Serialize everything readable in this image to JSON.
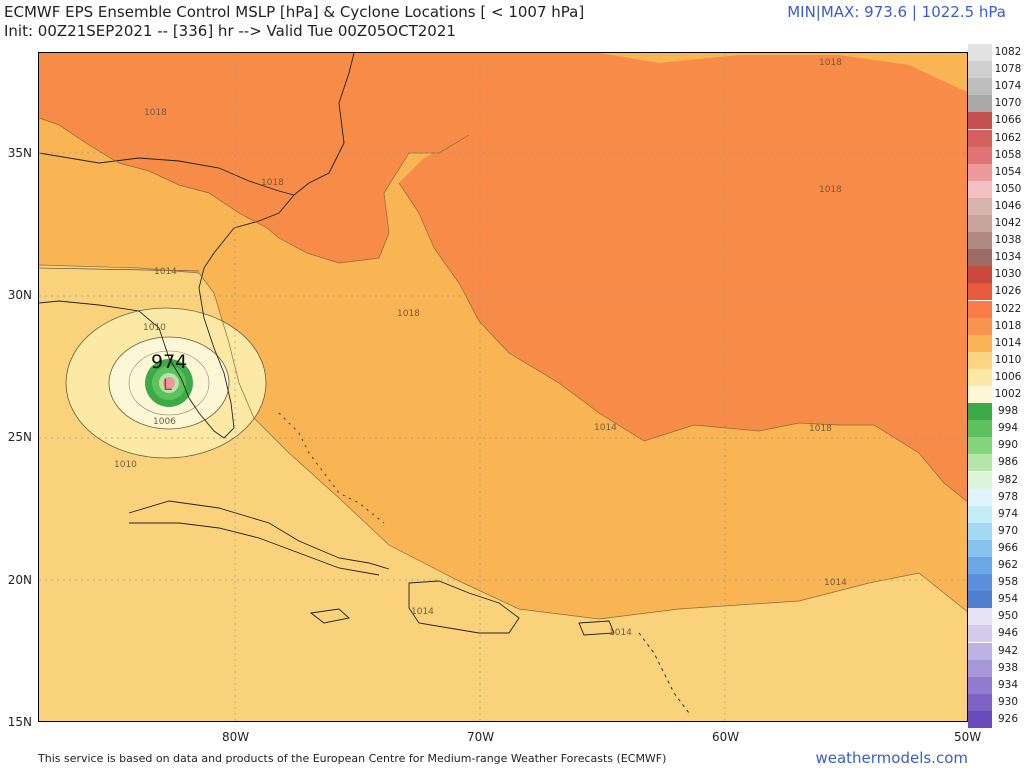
{
  "header": {
    "title_line1": "ECMWF EPS Ensemble Control MSLP [hPa] & Cyclone Locations [ < 1007 hPa]",
    "title_line2": "Init: 00Z21SEP2021 -- [336] hr --> Valid Tue 00Z05OCT2021",
    "minmax": "MIN|MAX: 973.6 | 1022.5 hPa"
  },
  "axes": {
    "lat_labels": [
      "35N",
      "30N",
      "25N",
      "20N",
      "15N"
    ],
    "lon_labels": [
      "80W",
      "70W",
      "60W",
      "50W"
    ]
  },
  "contour_labels": [
    "1018",
    "1018",
    "1018",
    "1018",
    "1018",
    "1018",
    "1014",
    "1010",
    "1006",
    "1010",
    "1014",
    "1014",
    "1014",
    "1014"
  ],
  "cyclone": {
    "marker": "L",
    "pressure_label": "974"
  },
  "colorbar": {
    "levels": [
      "1082",
      "1078",
      "1074",
      "1070",
      "1066",
      "1062",
      "1058",
      "1054",
      "1050",
      "1046",
      "1042",
      "1038",
      "1034",
      "1030",
      "1026",
      "1022",
      "1018",
      "1014",
      "1010",
      "1006",
      "1002",
      "998",
      "994",
      "990",
      "986",
      "982",
      "978",
      "974",
      "970",
      "966",
      "962",
      "958",
      "954",
      "950",
      "946",
      "942",
      "938",
      "934",
      "930",
      "926"
    ],
    "colors": [
      "#e2e2e2",
      "#cfcfcf",
      "#bdbdbd",
      "#a9a9a9",
      "#c45050",
      "#d46060",
      "#e07373",
      "#ea9a9a",
      "#f2c0c0",
      "#d9b3ad",
      "#c6a39b",
      "#b08a80",
      "#9c6b63",
      "#c84a3c",
      "#e85a3c",
      "#f97b45",
      "#f9944e",
      "#f9b555",
      "#fcd484",
      "#fde9a6",
      "#fdf7d6",
      "#3daa4a",
      "#5ec05e",
      "#86d47c",
      "#b4e6a8",
      "#dcf5da",
      "#e0f4fb",
      "#c4ecf8",
      "#a4d8f4",
      "#86c3ee",
      "#6da8e6",
      "#5b8fdc",
      "#4f7fd0",
      "#e7e3f6",
      "#d3ccef",
      "#bdb2e5",
      "#a797da",
      "#927ccf",
      "#7e63c4",
      "#6b4bb9"
    ]
  },
  "footer": {
    "attribution": "This service is based on data and products of the European Centre for Medium-range Weather Forecasts (ECMWF)",
    "site": "weathermodels.com"
  }
}
